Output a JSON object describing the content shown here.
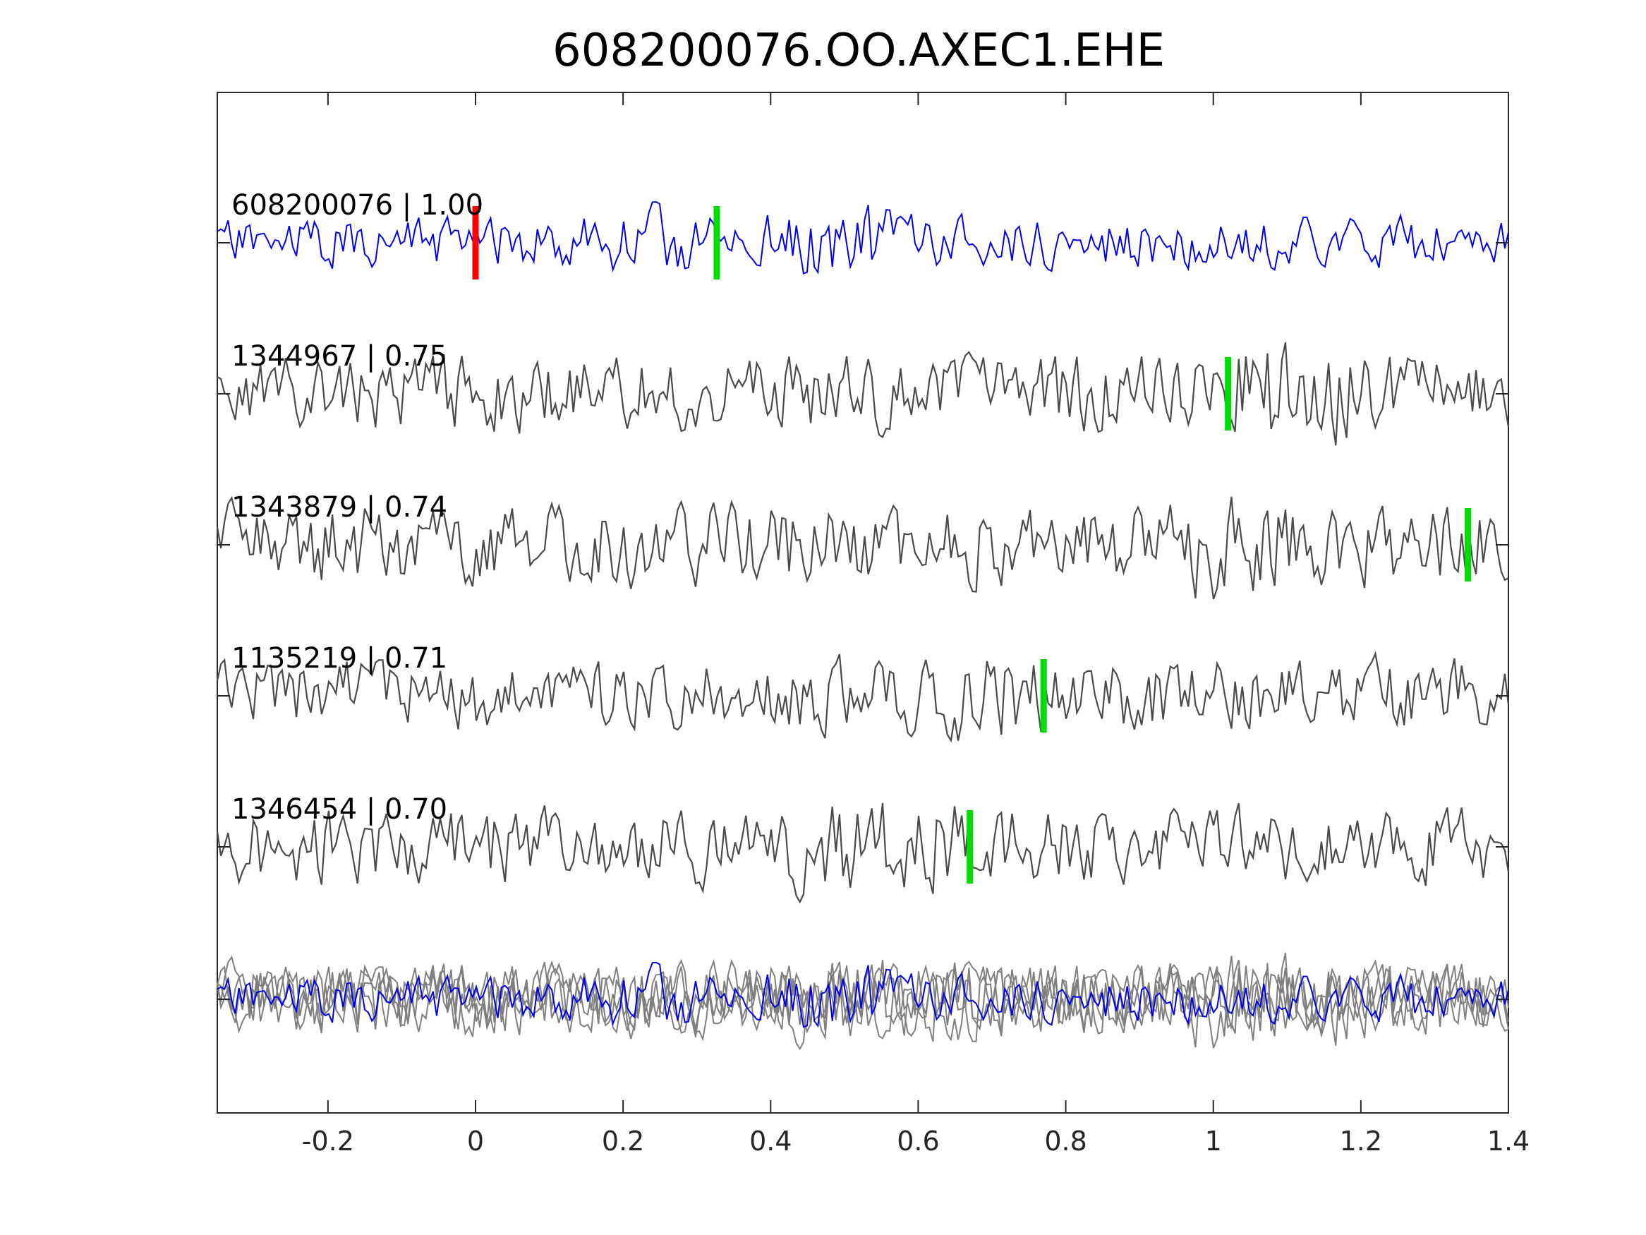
{
  "chart_data": {
    "type": "line",
    "title": "608200076.OO.AXEC1.EHE",
    "xlabel": "",
    "ylabel": "",
    "xlim": [
      -0.35,
      1.4
    ],
    "x_ticks": [
      "-0.2",
      "0",
      "0.2",
      "0.4",
      "0.6",
      "0.8",
      "1",
      "1.2",
      "1.4"
    ],
    "x_tick_values": [
      -0.2,
      0,
      0.2,
      0.4,
      0.6,
      0.8,
      1.0,
      1.2,
      1.4
    ],
    "grid": false,
    "legend": "none",
    "colors": {
      "template": "#0000ee",
      "match": "#4a4a4a",
      "stack": "#7f7f7f",
      "template_pick": "#ff0000",
      "match_pick": "#00dd00",
      "axis": "#262626"
    },
    "traces": [
      {
        "label": "608200076 | 1.00",
        "event_id": "608200076",
        "correlation": 1.0,
        "pick_time": 0.0,
        "pick_color": "red",
        "is_template": true
      },
      {
        "label": "1344967 | 0.75",
        "event_id": "1344967",
        "correlation": 0.75,
        "pick_time": 1.02,
        "pick_color": "green",
        "is_template": false
      },
      {
        "label": "1343879 | 0.74",
        "event_id": "1343879",
        "correlation": 0.74,
        "pick_time": 1.345,
        "pick_color": "green",
        "is_template": false
      },
      {
        "label": "1135219 | 0.71",
        "event_id": "1135219",
        "correlation": 0.71,
        "pick_time": 0.77,
        "pick_color": "green",
        "is_template": false
      },
      {
        "label": "1346454 | 0.70",
        "event_id": "1346454",
        "correlation": 0.7,
        "pick_time": 0.67,
        "pick_color": "green",
        "is_template": false
      }
    ],
    "template_marker": 0.327,
    "overlay": "all traces aligned and superimposed"
  }
}
